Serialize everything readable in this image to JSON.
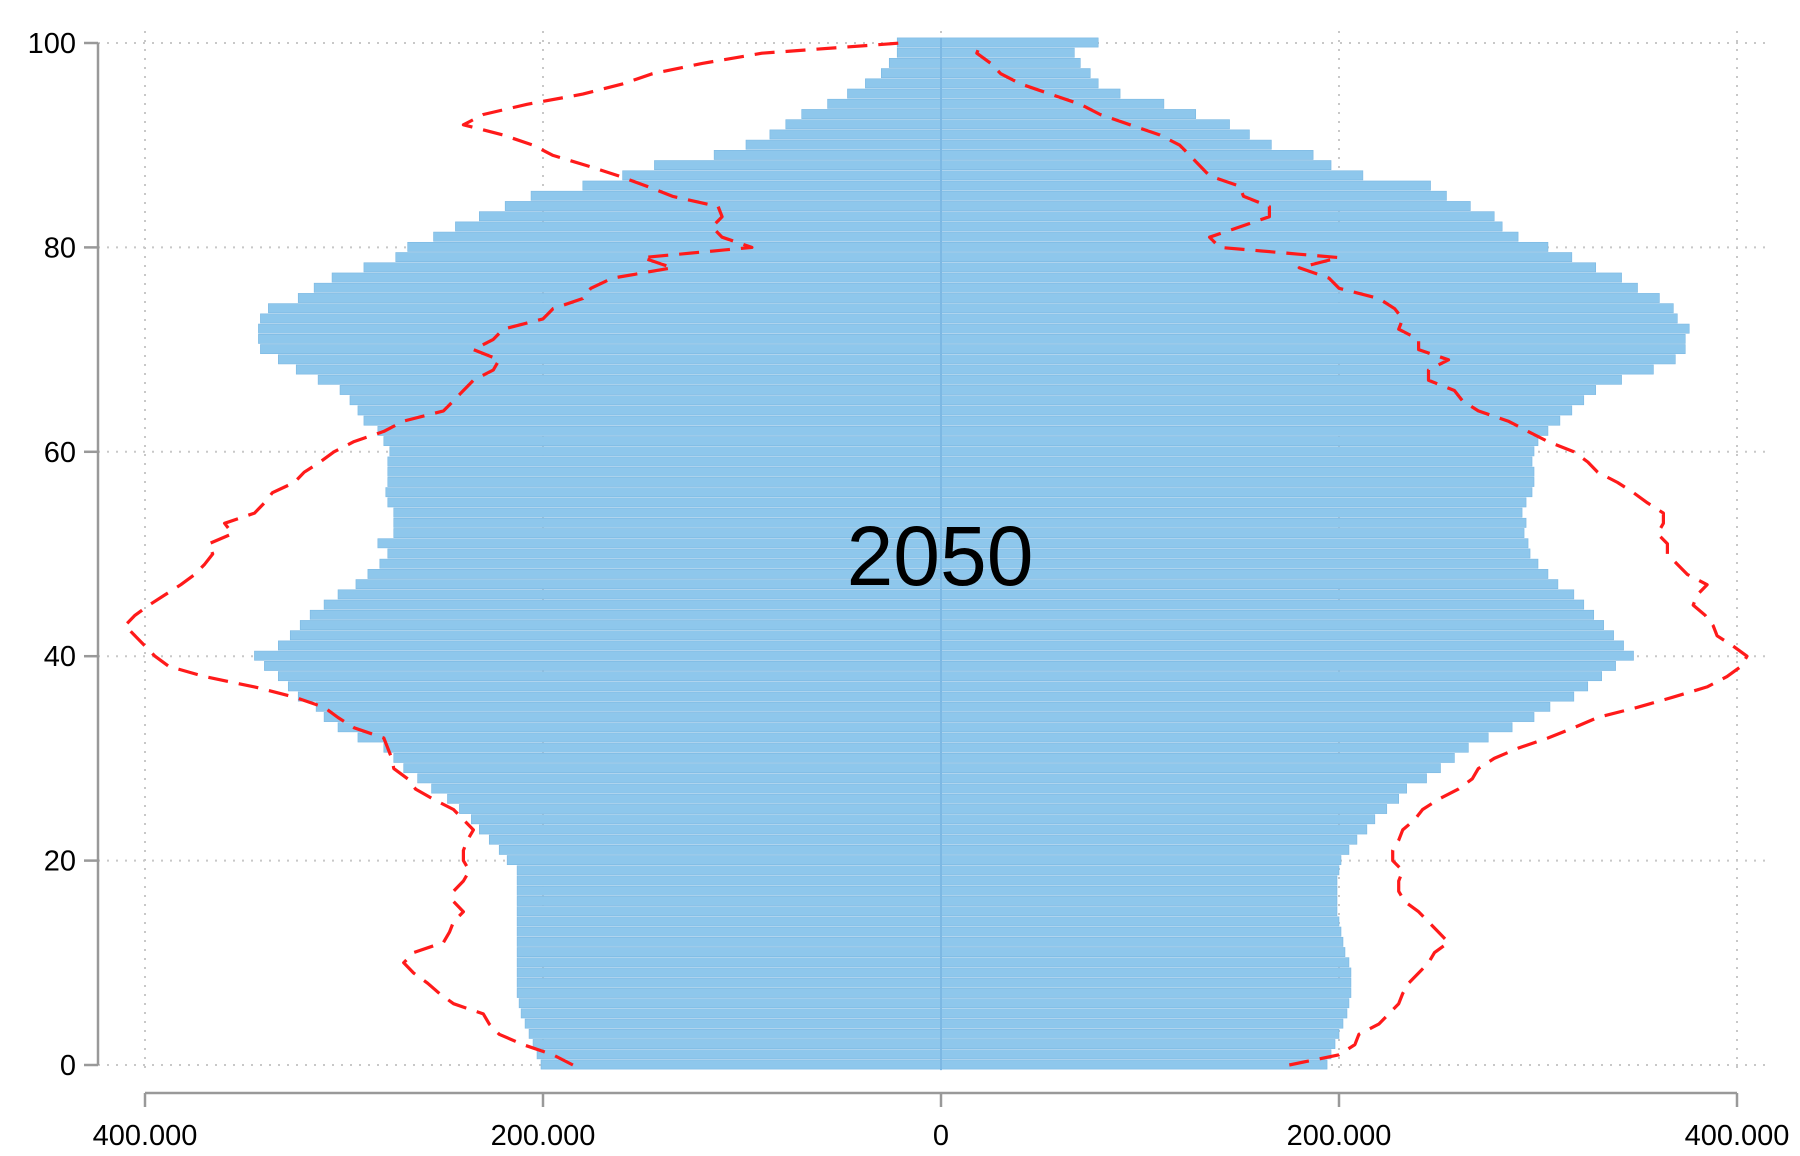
{
  "chart_data": {
    "type": "bar",
    "subtype": "population-pyramid",
    "annotation": "2050",
    "orientation": "horizontal",
    "xlim": [
      -400000,
      400000
    ],
    "ylim": [
      0,
      100
    ],
    "x_ticks": [
      {
        "value": -400000,
        "label": "400.000"
      },
      {
        "value": -200000,
        "label": "200.000"
      },
      {
        "value": 0,
        "label": "0"
      },
      {
        "value": 200000,
        "label": "200.000"
      },
      {
        "value": 400000,
        "label": "400.000"
      }
    ],
    "y_ticks": [
      {
        "value": 0,
        "label": "0"
      },
      {
        "value": 20,
        "label": "20"
      },
      {
        "value": 40,
        "label": "40"
      },
      {
        "value": 60,
        "label": "60"
      },
      {
        "value": 80,
        "label": "80"
      },
      {
        "value": 100,
        "label": "100"
      }
    ],
    "grid": true,
    "colors": {
      "bars": "#8ec7ec",
      "bar_stroke": "#7bb8e2",
      "line": "#ff1a1a",
      "axis": "#999999",
      "grid": "#c8c8c8"
    },
    "ages": [
      0,
      1,
      2,
      3,
      4,
      5,
      6,
      7,
      8,
      9,
      10,
      11,
      12,
      13,
      14,
      15,
      16,
      17,
      18,
      19,
      20,
      21,
      22,
      23,
      24,
      25,
      26,
      27,
      28,
      29,
      30,
      31,
      32,
      33,
      34,
      35,
      36,
      37,
      38,
      39,
      40,
      41,
      42,
      43,
      44,
      45,
      46,
      47,
      48,
      49,
      50,
      51,
      52,
      53,
      54,
      55,
      56,
      57,
      58,
      59,
      60,
      61,
      62,
      63,
      64,
      65,
      66,
      67,
      68,
      69,
      70,
      71,
      72,
      73,
      74,
      75,
      76,
      77,
      78,
      79,
      80,
      81,
      82,
      83,
      84,
      85,
      86,
      87,
      88,
      89,
      90,
      91,
      92,
      93,
      94,
      95,
      96,
      97,
      98,
      99,
      100
    ],
    "series": [
      {
        "side": "left",
        "kind": "bars",
        "values": [
          201000,
          203000,
          205000,
          207000,
          209000,
          211000,
          212000,
          213000,
          213000,
          213000,
          213000,
          213000,
          213000,
          213000,
          213000,
          213000,
          213000,
          213000,
          213000,
          213000,
          218000,
          222000,
          227000,
          232000,
          236000,
          242000,
          248000,
          256000,
          263000,
          270000,
          275000,
          280000,
          293000,
          303000,
          310000,
          314000,
          323000,
          328000,
          333000,
          340000,
          345000,
          333000,
          327000,
          322000,
          317000,
          310000,
          303000,
          294000,
          288000,
          282000,
          278000,
          283000,
          275000,
          275000,
          275000,
          278000,
          279000,
          278000,
          278000,
          278000,
          277000,
          280000,
          283000,
          290000,
          293000,
          297000,
          302000,
          313000,
          324000,
          333000,
          342000,
          343000,
          343000,
          342000,
          338000,
          323000,
          315000,
          306000,
          290000,
          274000,
          268000,
          255000,
          244000,
          232000,
          219000,
          206000,
          180000,
          160000,
          144000,
          114000,
          98000,
          86000,
          78000,
          70000,
          57000,
          47000,
          38000,
          30000,
          26000,
          22000,
          22000
        ]
      },
      {
        "side": "right",
        "kind": "bars",
        "values": [
          194000,
          196000,
          198000,
          200000,
          202000,
          204000,
          205000,
          206000,
          206000,
          206000,
          205000,
          203000,
          202000,
          201000,
          200000,
          199000,
          199000,
          199000,
          199000,
          200000,
          201000,
          205000,
          209000,
          214000,
          218000,
          224000,
          230000,
          234000,
          244000,
          251000,
          258000,
          265000,
          275000,
          287000,
          298000,
          306000,
          318000,
          325000,
          332000,
          339000,
          348000,
          343000,
          338000,
          333000,
          328000,
          323000,
          318000,
          310000,
          305000,
          300000,
          296000,
          295000,
          293000,
          294000,
          292000,
          294000,
          297000,
          298000,
          298000,
          297000,
          298000,
          300000,
          305000,
          311000,
          317000,
          323000,
          329000,
          342000,
          358000,
          369000,
          374000,
          374000,
          376000,
          370000,
          368000,
          361000,
          350000,
          342000,
          329000,
          317000,
          305000,
          290000,
          282000,
          278000,
          266000,
          254000,
          246000,
          212000,
          196000,
          187000,
          166000,
          155000,
          145000,
          128000,
          112000,
          90000,
          79000,
          75000,
          70000,
          67000,
          79000
        ]
      },
      {
        "side": "left",
        "kind": "line",
        "style": "dashed",
        "values": [
          185000,
          195000,
          210000,
          222000,
          227000,
          230000,
          245000,
          252000,
          258000,
          265000,
          270000,
          265000,
          250000,
          247000,
          245000,
          240000,
          245000,
          245000,
          240000,
          237000,
          240000,
          240000,
          238000,
          235000,
          240000,
          245000,
          255000,
          264000,
          268000,
          275000,
          276000,
          278000,
          280000,
          295000,
          303000,
          310000,
          325000,
          345000,
          370000,
          388000,
          395000,
          400000,
          405000,
          410000,
          405000,
          398000,
          390000,
          382000,
          375000,
          370000,
          366000,
          368000,
          356000,
          360000,
          345000,
          340000,
          336000,
          325000,
          320000,
          312000,
          305000,
          295000,
          280000,
          270000,
          250000,
          245000,
          240000,
          235000,
          225000,
          222000,
          235000,
          225000,
          220000,
          200000,
          195000,
          180000,
          176000,
          165000,
          135000,
          150000,
          95000,
          110000,
          115000,
          110000,
          112000,
          135000,
          148000,
          162000,
          178000,
          195000,
          205000,
          220000,
          240000,
          230000,
          208000,
          180000,
          160000,
          145000,
          120000,
          90000,
          20000
        ]
      },
      {
        "side": "right",
        "kind": "line",
        "style": "dashed",
        "values": [
          175000,
          200000,
          208000,
          210000,
          220000,
          225000,
          230000,
          232000,
          235000,
          240000,
          245000,
          248000,
          255000,
          250000,
          245000,
          240000,
          233000,
          230000,
          230000,
          232000,
          227000,
          227000,
          230000,
          232000,
          238000,
          242000,
          250000,
          260000,
          267000,
          270000,
          278000,
          290000,
          305000,
          318000,
          330000,
          350000,
          368000,
          385000,
          395000,
          402000,
          405000,
          398000,
          390000,
          388000,
          384000,
          378000,
          380000,
          385000,
          375000,
          370000,
          365000,
          365000,
          360000,
          363000,
          363000,
          355000,
          348000,
          340000,
          330000,
          325000,
          318000,
          305000,
          295000,
          285000,
          270000,
          262000,
          258000,
          245000,
          245000,
          255000,
          240000,
          240000,
          230000,
          232000,
          228000,
          220000,
          200000,
          195000,
          180000,
          200000,
          140000,
          135000,
          150000,
          165000,
          165000,
          152000,
          150000,
          135000,
          130000,
          125000,
          120000,
          110000,
          95000,
          80000,
          70000,
          55000,
          40000,
          30000,
          25000,
          18000,
          20000
        ]
      }
    ]
  }
}
